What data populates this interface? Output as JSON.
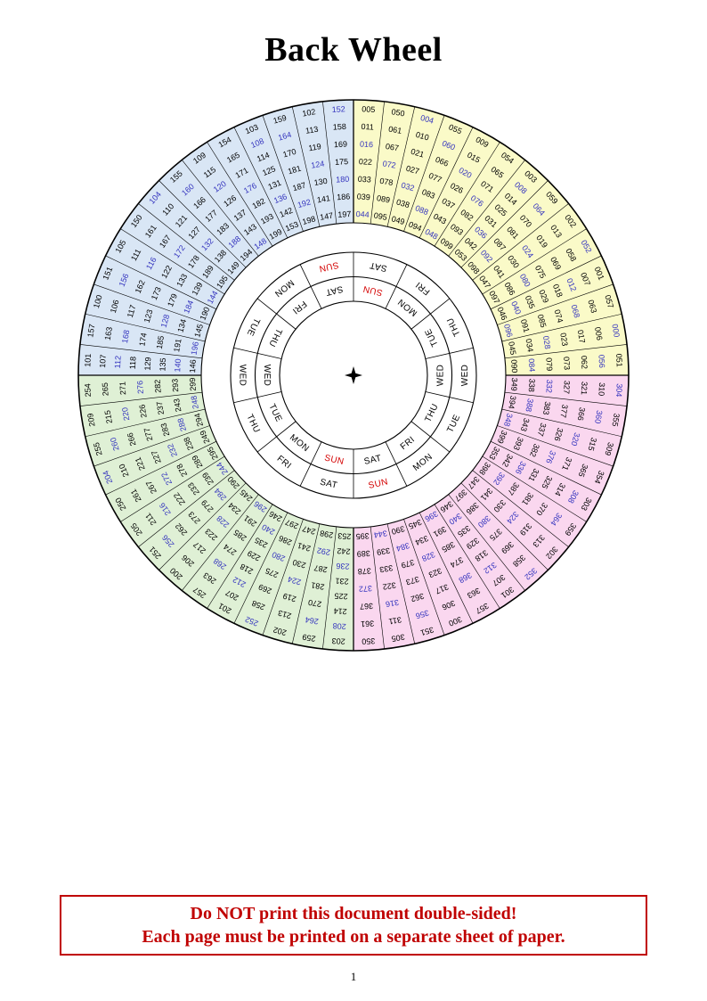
{
  "title": "Back Wheel",
  "page_number": "1",
  "warning": {
    "line1": "Do NOT print this document double-sided!",
    "line2": "Each page must be printed on a separate sheet of paper."
  },
  "icons": {
    "center": "four-pointed-star"
  },
  "colors": {
    "leap_year_text": "#3434be",
    "normal_text": "#000000",
    "sunday_text": "#d40000",
    "warning_red": "#c00000",
    "quadrant_yellow": "#fafac8",
    "quadrant_blue": "#d9e6f5",
    "quadrant_green": "#dff0d5",
    "quadrant_pink": "#fad7ef"
  },
  "wheel": {
    "day_rings": {
      "outer": [
        "SUN",
        "MON",
        "TUE",
        "WED",
        "THU",
        "FRI",
        "SAT",
        "SUN",
        "MON",
        "TUE",
        "WED",
        "THU",
        "FRI",
        "SAT"
      ],
      "inner": [
        "SAT",
        "FRI",
        "THU",
        "WED",
        "TUE",
        "MON",
        "SUN",
        "SAT",
        "FRI",
        "THU",
        "WED",
        "TUE",
        "MON",
        "SUN"
      ]
    },
    "quadrants": [
      {
        "name": "years-000-099",
        "fill_key": "quadrant_yellow",
        "start_angle": 0,
        "sectors": [
          [
            "000",
            "006",
            "017",
            "023",
            "028",
            "034",
            "045",
            "051",
            "056",
            "062",
            "073",
            "079",
            "084",
            "090"
          ],
          [
            "001",
            "007",
            "012",
            "018",
            "029",
            "035",
            "040",
            "046",
            "057",
            "063",
            "068",
            "074",
            "085",
            "091",
            "096"
          ],
          [
            "002",
            "013",
            "019",
            "024",
            "030",
            "041",
            "047",
            "052",
            "058",
            "069",
            "075",
            "080",
            "086",
            "097"
          ],
          [
            "003",
            "008",
            "014",
            "025",
            "031",
            "036",
            "042",
            "053",
            "059",
            "064",
            "070",
            "081",
            "087",
            "092",
            "098"
          ],
          [
            "009",
            "015",
            "020",
            "026",
            "037",
            "043",
            "048",
            "054",
            "065",
            "071",
            "076",
            "082",
            "093",
            "099"
          ],
          [
            "004",
            "010",
            "021",
            "027",
            "032",
            "038",
            "049",
            "055",
            "060",
            "066",
            "077",
            "083",
            "088",
            "094"
          ],
          [
            "005",
            "011",
            "016",
            "022",
            "033",
            "039",
            "044",
            "050",
            "061",
            "067",
            "072",
            "078",
            "089",
            "095"
          ]
        ]
      },
      {
        "name": "years-100-199",
        "fill_key": "quadrant_blue",
        "start_angle": 90,
        "sectors": [
          [
            "102",
            "113",
            "119",
            "124",
            "130",
            "141",
            "147",
            "152",
            "158",
            "169",
            "175",
            "180",
            "186",
            "197"
          ],
          [
            "103",
            "108",
            "114",
            "125",
            "131",
            "136",
            "142",
            "153",
            "159",
            "164",
            "170",
            "181",
            "187",
            "192",
            "198"
          ],
          [
            "109",
            "115",
            "120",
            "126",
            "137",
            "143",
            "148",
            "154",
            "165",
            "171",
            "176",
            "182",
            "193",
            "199"
          ],
          [
            "104",
            "110",
            "121",
            "127",
            "132",
            "138",
            "149",
            "155",
            "160",
            "166",
            "177",
            "183",
            "188",
            "194"
          ],
          [
            "105",
            "111",
            "116",
            "122",
            "133",
            "139",
            "144",
            "150",
            "161",
            "167",
            "172",
            "178",
            "189",
            "195"
          ],
          [
            "100",
            "106",
            "117",
            "123",
            "128",
            "134",
            "145",
            "151",
            "156",
            "162",
            "173",
            "179",
            "184",
            "190"
          ],
          [
            "101",
            "107",
            "112",
            "118",
            "129",
            "135",
            "140",
            "146",
            "157",
            "163",
            "168",
            "174",
            "185",
            "191",
            "196"
          ]
        ]
      },
      {
        "name": "years-200-299",
        "fill_key": "quadrant_green",
        "start_angle": 180,
        "sectors": [
          [
            "209",
            "215",
            "220",
            "226",
            "237",
            "243",
            "248",
            "254",
            "265",
            "271",
            "276",
            "282",
            "293",
            "299"
          ],
          [
            "204",
            "210",
            "221",
            "227",
            "232",
            "238",
            "249",
            "255",
            "260",
            "266",
            "277",
            "283",
            "288",
            "294"
          ],
          [
            "205",
            "211",
            "216",
            "222",
            "233",
            "239",
            "244",
            "250",
            "261",
            "267",
            "272",
            "278",
            "289",
            "295"
          ],
          [
            "200",
            "206",
            "217",
            "223",
            "228",
            "234",
            "245",
            "251",
            "256",
            "262",
            "273",
            "279",
            "284",
            "290"
          ],
          [
            "201",
            "207",
            "212",
            "218",
            "229",
            "235",
            "240",
            "246",
            "257",
            "263",
            "268",
            "274",
            "285",
            "291",
            "296"
          ],
          [
            "202",
            "213",
            "219",
            "224",
            "230",
            "241",
            "247",
            "252",
            "258",
            "269",
            "275",
            "280",
            "286",
            "297"
          ],
          [
            "203",
            "208",
            "214",
            "225",
            "231",
            "236",
            "242",
            "253",
            "259",
            "264",
            "270",
            "281",
            "287",
            "292",
            "298"
          ]
        ]
      },
      {
        "name": "years-300-399",
        "fill_key": "quadrant_pink",
        "start_angle": 270,
        "sectors": [
          [
            "305",
            "311",
            "316",
            "322",
            "333",
            "339",
            "344",
            "350",
            "361",
            "367",
            "372",
            "378",
            "389",
            "395"
          ],
          [
            "300",
            "306",
            "317",
            "323",
            "328",
            "334",
            "345",
            "351",
            "356",
            "362",
            "373",
            "379",
            "384",
            "390"
          ],
          [
            "301",
            "307",
            "312",
            "318",
            "329",
            "335",
            "340",
            "346",
            "357",
            "363",
            "368",
            "374",
            "385",
            "391",
            "396"
          ],
          [
            "302",
            "313",
            "319",
            "324",
            "330",
            "341",
            "347",
            "352",
            "358",
            "369",
            "375",
            "380",
            "386",
            "397"
          ],
          [
            "303",
            "308",
            "314",
            "325",
            "331",
            "336",
            "342",
            "353",
            "359",
            "364",
            "370",
            "381",
            "387",
            "392",
            "398"
          ],
          [
            "309",
            "315",
            "320",
            "326",
            "337",
            "343",
            "348",
            "354",
            "365",
            "371",
            "376",
            "382",
            "393",
            "399"
          ],
          [
            "304",
            "310",
            "321",
            "327",
            "332",
            "338",
            "349",
            "355",
            "360",
            "366",
            "377",
            "383",
            "388",
            "394"
          ]
        ]
      }
    ]
  }
}
